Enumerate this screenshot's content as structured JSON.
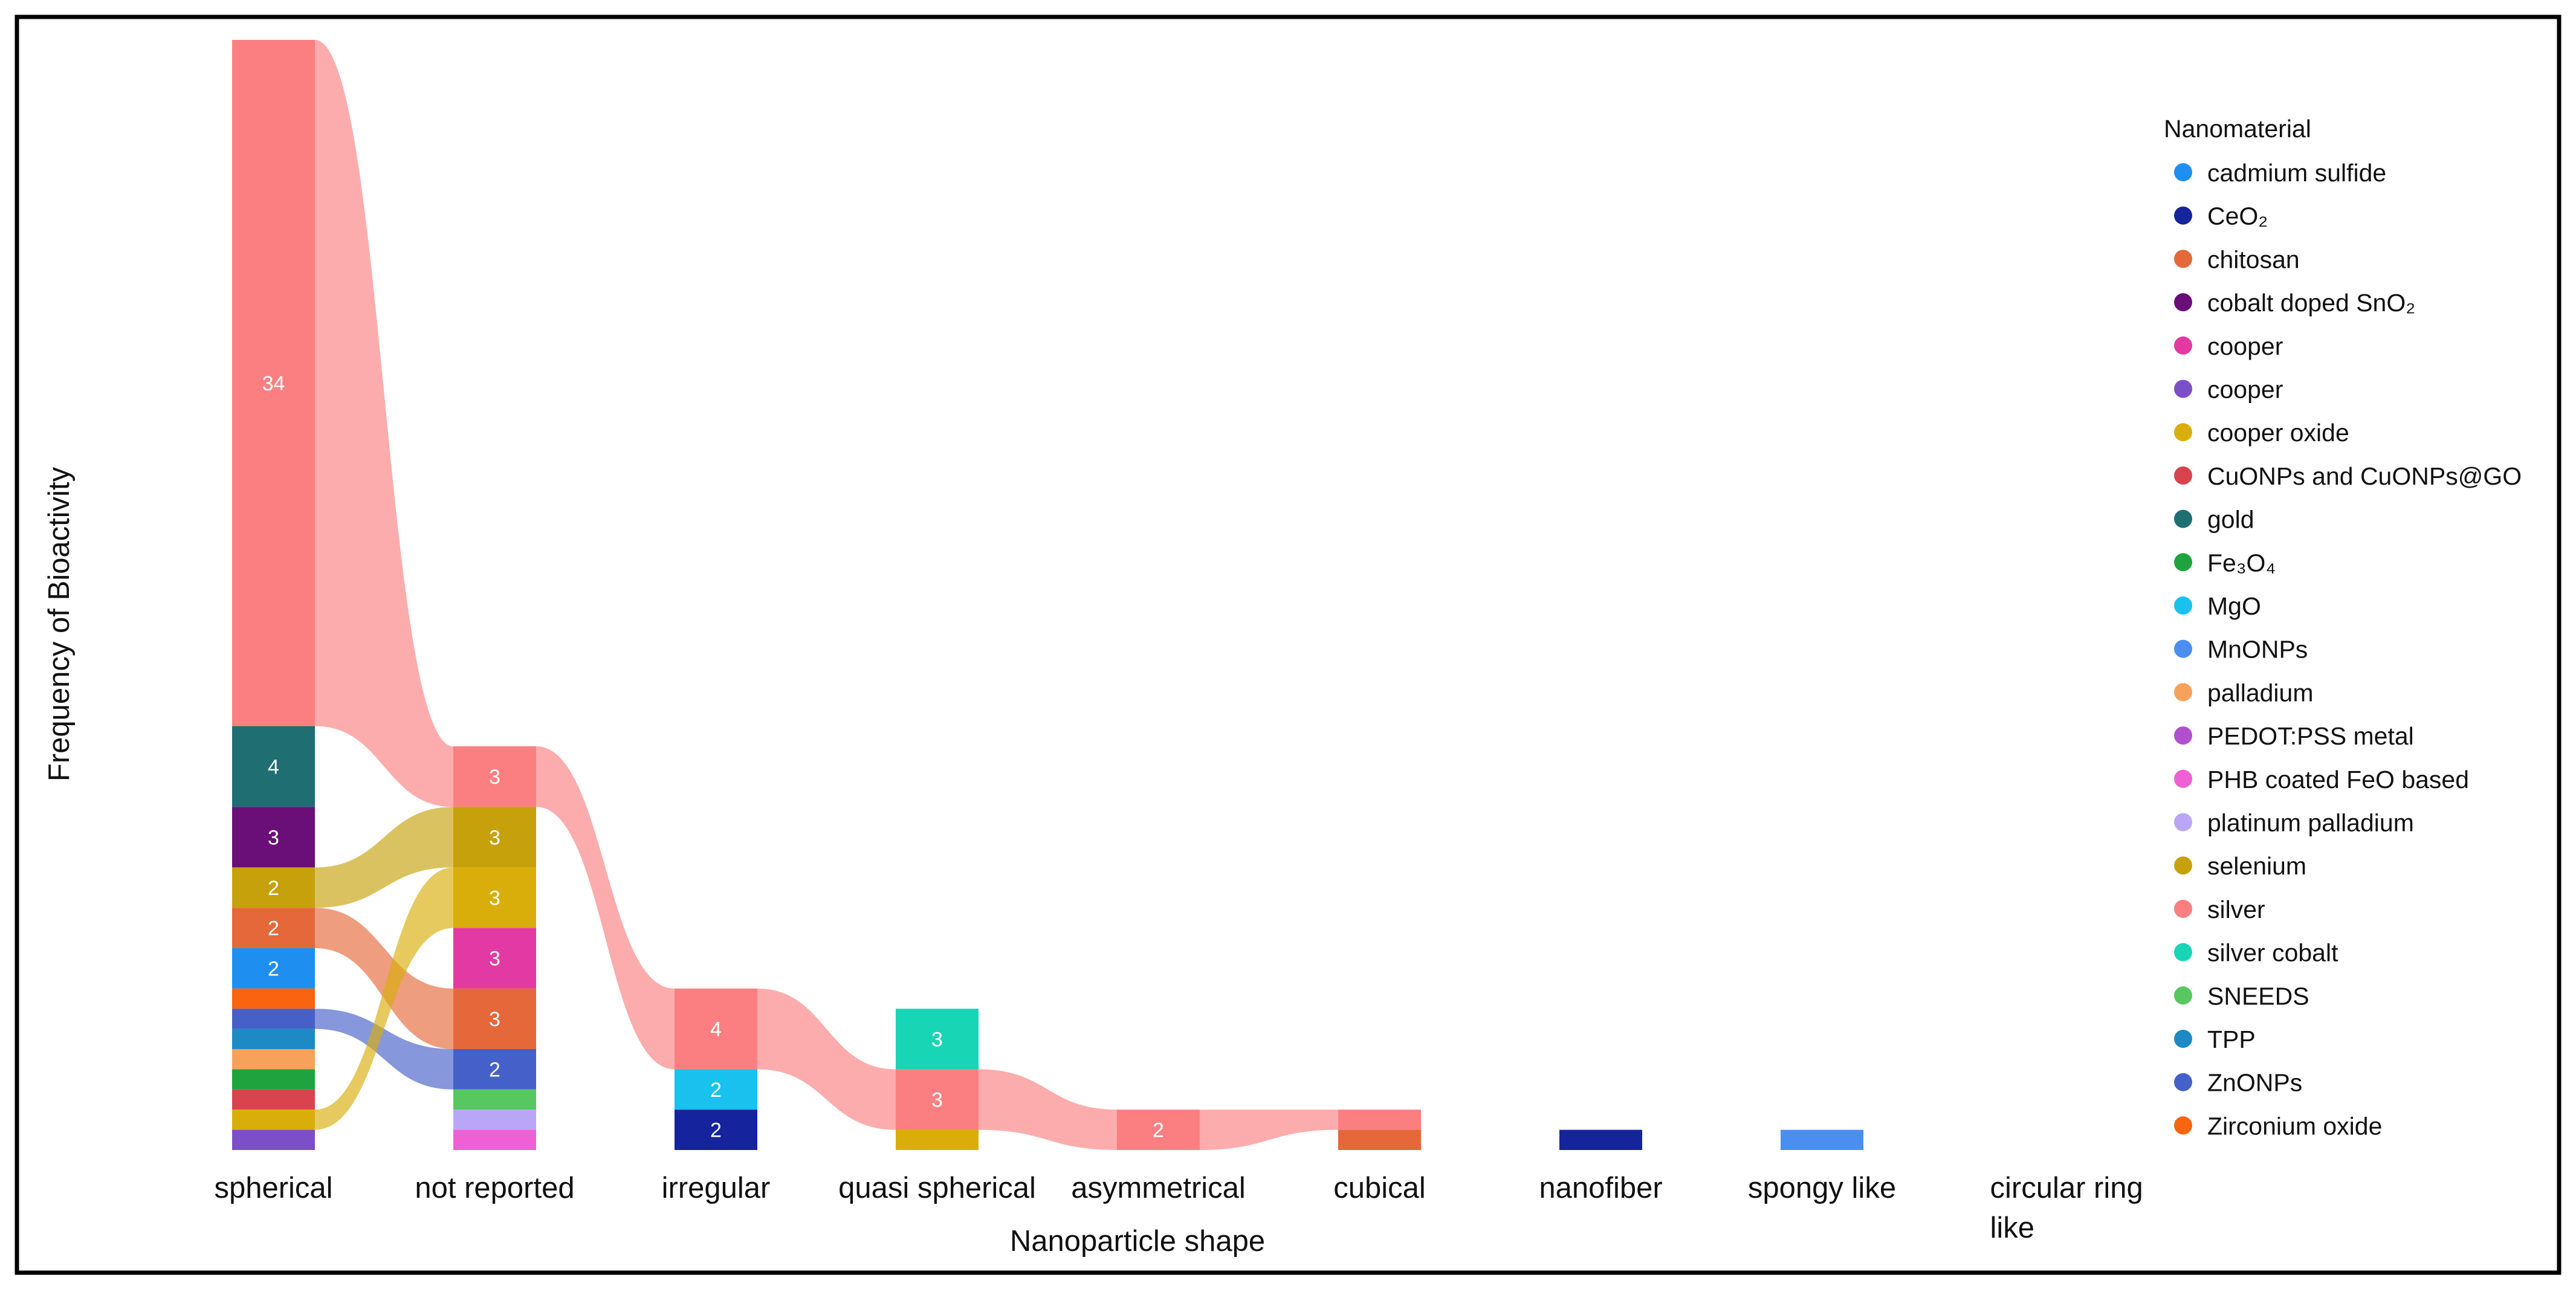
{
  "chart_data": {
    "type": "sankey",
    "x_title": "Nanoparticle shape",
    "y_title": "Frequency of Bioactivity",
    "legend_title": "Nanomaterial",
    "categories": [
      "spherical",
      "not reported",
      "irregular",
      "quasi spherical",
      "asymmetrical",
      "cubical",
      "nanofiber",
      "spongy like",
      "circular ring like"
    ],
    "materials": [
      {
        "name": "cadmium sulfide",
        "label": "cadmium sulfide",
        "color": "#1e8ff0"
      },
      {
        "name": "CeO2",
        "label": "CeO₂",
        "color": "#15239c"
      },
      {
        "name": "chitosan",
        "label": "chitosan",
        "color": "#e5683a"
      },
      {
        "name": "cobalt doped SnO2",
        "label": "cobalt doped SnO₂",
        "color": "#6b0f78"
      },
      {
        "name": "cooper",
        "label": "cooper",
        "color": "#e23aa2"
      },
      {
        "name": "cooper (2)",
        "label": "cooper",
        "color": "#7b4fc8"
      },
      {
        "name": "cooper oxide",
        "label": "cooper oxide",
        "color": "#d9ae0a"
      },
      {
        "name": "CuONPs and CuONPs@GO",
        "label": "CuONPs and CuONPs@GO",
        "color": "#d9434e"
      },
      {
        "name": "gold",
        "label": "gold",
        "color": "#1e6e72"
      },
      {
        "name": "Fe3O4",
        "label": "Fe₃O₄",
        "color": "#1fa33e"
      },
      {
        "name": "MgO",
        "label": "MgO",
        "color": "#19c1ee"
      },
      {
        "name": "MnONPs",
        "label": "MnONPs",
        "color": "#4b8ef2"
      },
      {
        "name": "palladium",
        "label": "palladium",
        "color": "#f6a25a"
      },
      {
        "name": "PEDOT:PSS metal",
        "label": "PEDOT:PSS metal",
        "color": "#b04fcf"
      },
      {
        "name": "PHB coated FeO based",
        "label": "PHB coated FeO based",
        "color": "#ee60d3"
      },
      {
        "name": "platinum palladium",
        "label": "platinum palladium",
        "color": "#b9a6f6"
      },
      {
        "name": "selenium",
        "label": "selenium",
        "color": "#c7a10c"
      },
      {
        "name": "silver",
        "label": "silver",
        "color": "#fb7f80"
      },
      {
        "name": "silver cobalt",
        "label": "silver cobalt",
        "color": "#18d5b6"
      },
      {
        "name": "SNEEDS",
        "label": "SNEEDS",
        "color": "#56c85f"
      },
      {
        "name": "TPP",
        "label": "TPP",
        "color": "#1d8ac6"
      },
      {
        "name": "ZnONPs",
        "label": "ZnONPs",
        "color": "#4560c8"
      },
      {
        "name": "Zirconium oxide",
        "label": "Zirconium oxide",
        "color": "#f8640f"
      }
    ],
    "columns": [
      {
        "category": "spherical",
        "segments": [
          {
            "material": "silver",
            "value": 34,
            "label": "34"
          },
          {
            "material": "gold",
            "value": 4,
            "label": "4"
          },
          {
            "material": "cobalt doped SnO2",
            "value": 3,
            "label": "3"
          },
          {
            "material": "selenium",
            "value": 2,
            "label": "2"
          },
          {
            "material": "chitosan",
            "value": 2,
            "label": "2"
          },
          {
            "material": "cadmium sulfide",
            "value": 2,
            "label": "2"
          },
          {
            "material": "Zirconium oxide",
            "value": 1
          },
          {
            "material": "ZnONPs",
            "value": 1
          },
          {
            "material": "TPP",
            "value": 1
          },
          {
            "material": "palladium",
            "value": 1
          },
          {
            "material": "Fe3O4",
            "value": 1
          },
          {
            "material": "CuONPs and CuONPs@GO",
            "value": 1
          },
          {
            "material": "cooper oxide",
            "value": 1
          },
          {
            "material": "cooper (2)",
            "value": 1
          }
        ]
      },
      {
        "category": "not reported",
        "segments": [
          {
            "material": "silver",
            "value": 3,
            "label": "3"
          },
          {
            "material": "selenium",
            "value": 3,
            "label": "3"
          },
          {
            "material": "cooper oxide",
            "value": 3,
            "label": "3"
          },
          {
            "material": "cooper",
            "value": 3,
            "label": "3"
          },
          {
            "material": "chitosan",
            "value": 3,
            "label": "3"
          },
          {
            "material": "ZnONPs",
            "value": 2,
            "label": "2"
          },
          {
            "material": "SNEEDS",
            "value": 1
          },
          {
            "material": "platinum palladium",
            "value": 1
          },
          {
            "material": "PHB coated FeO based",
            "value": 1
          }
        ]
      },
      {
        "category": "irregular",
        "segments": [
          {
            "material": "silver",
            "value": 4,
            "label": "4"
          },
          {
            "material": "MgO",
            "value": 2,
            "label": "2"
          },
          {
            "material": "CeO2",
            "value": 2,
            "label": "2"
          }
        ]
      },
      {
        "category": "quasi spherical",
        "segments": [
          {
            "material": "silver cobalt",
            "value": 3,
            "label": "3"
          },
          {
            "material": "silver",
            "value": 3,
            "label": "3"
          },
          {
            "material": "cooper oxide",
            "value": 1
          }
        ]
      },
      {
        "category": "asymmetrical",
        "segments": [
          {
            "material": "silver",
            "value": 2,
            "label": "2"
          }
        ]
      },
      {
        "category": "cubical",
        "segments": [
          {
            "material": "silver",
            "value": 1
          },
          {
            "material": "chitosan",
            "value": 1
          }
        ]
      },
      {
        "category": "nanofiber",
        "segments": [
          {
            "material": "CeO2",
            "value": 1
          }
        ]
      },
      {
        "category": "spongy like",
        "segments": [
          {
            "material": "MnONPs",
            "value": 1
          }
        ]
      },
      {
        "category": "circular ring like",
        "segments": []
      }
    ],
    "flows": [
      {
        "material": "silver",
        "path": [
          "spherical",
          "not reported",
          "irregular",
          "quasi spherical",
          "asymmetrical",
          "cubical"
        ]
      },
      {
        "material": "selenium",
        "path": [
          "spherical",
          "not reported"
        ]
      },
      {
        "material": "chitosan",
        "path": [
          "spherical",
          "not reported"
        ]
      },
      {
        "material": "ZnONPs",
        "path": [
          "spherical",
          "not reported"
        ]
      },
      {
        "material": "cooper oxide",
        "path": [
          "spherical",
          "not reported"
        ]
      }
    ]
  }
}
